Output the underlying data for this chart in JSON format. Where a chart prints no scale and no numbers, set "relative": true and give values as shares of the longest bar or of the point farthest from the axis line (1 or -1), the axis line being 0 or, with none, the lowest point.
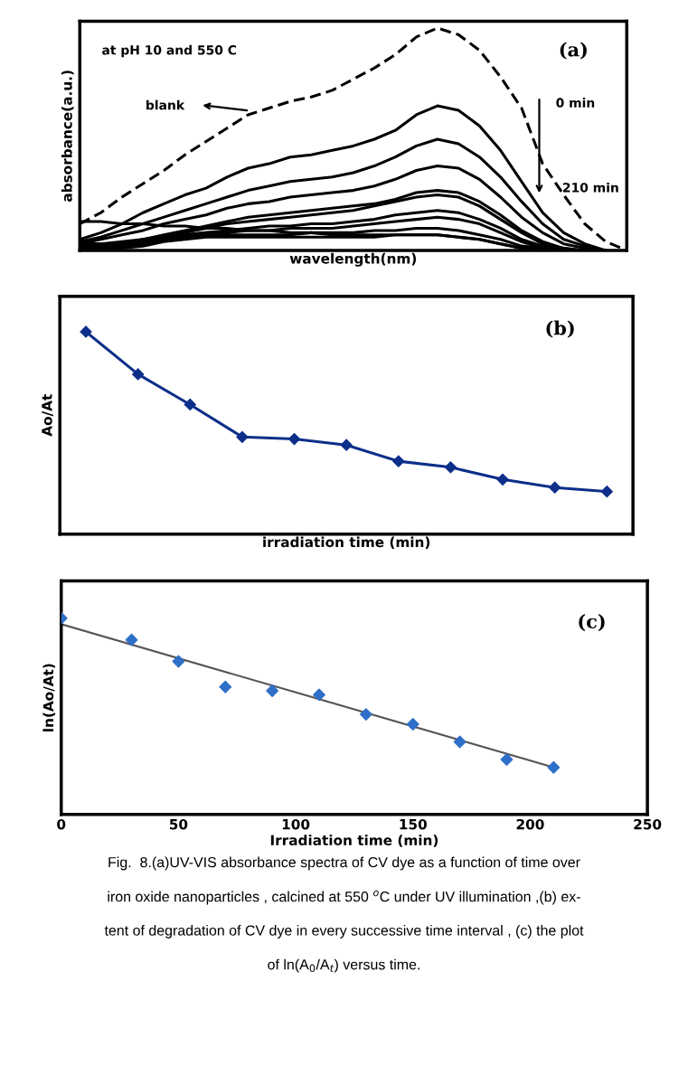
{
  "chart_data": [
    {
      "type": "line",
      "xlabel": "wavelength(nm)",
      "ylabel": "absorbance(a.u.)",
      "relative": true,
      "tick_labels": false,
      "grid": false,
      "categories": [
        null,
        null,
        null,
        null,
        null,
        null,
        null,
        null,
        null,
        null,
        null,
        null,
        null,
        null,
        null,
        null,
        null,
        null,
        null,
        null,
        null,
        null,
        null,
        null,
        null,
        null,
        null
      ],
      "annotations": [
        "at pH 10 and 550 C",
        "(a)",
        "blank",
        "0 min",
        "210 min"
      ],
      "series": [
        {
          "color": "#000000",
          "line_style": "dashed",
          "values": [
            0.12,
            0.17,
            0.24,
            0.3,
            0.36,
            0.43,
            0.49,
            0.55,
            0.61,
            0.64,
            0.67,
            0.69,
            0.72,
            0.77,
            0.82,
            0.88,
            0.96,
            1.0,
            0.97,
            0.9,
            0.78,
            0.64,
            0.39,
            0.25,
            0.12,
            0.04,
            0
          ]
        },
        {
          "color": "#000000",
          "values": [
            0.05,
            0.08,
            0.12,
            0.17,
            0.21,
            0.25,
            0.28,
            0.33,
            0.37,
            0.39,
            0.42,
            0.43,
            0.45,
            0.47,
            0.5,
            0.54,
            0.61,
            0.65,
            0.63,
            0.56,
            0.45,
            0.31,
            0.17,
            0.08,
            0.03,
            0,
            null
          ]
        },
        {
          "color": "#000000",
          "values": [
            0.04,
            0.06,
            0.09,
            0.12,
            0.15,
            0.18,
            0.21,
            0.24,
            0.27,
            0.29,
            0.31,
            0.32,
            0.33,
            0.35,
            0.38,
            0.42,
            0.47,
            0.5,
            0.48,
            0.42,
            0.33,
            0.22,
            0.12,
            0.05,
            0.02,
            0,
            null
          ]
        },
        {
          "color": "#000000",
          "values": [
            0.03,
            0.05,
            0.07,
            0.09,
            0.12,
            0.14,
            0.16,
            0.19,
            0.21,
            0.22,
            0.24,
            0.25,
            0.26,
            0.27,
            0.29,
            0.32,
            0.36,
            0.38,
            0.37,
            0.32,
            0.24,
            0.15,
            0.08,
            0.03,
            0.01,
            0,
            null
          ]
        },
        {
          "color": "#000000",
          "values": [
            0.025,
            0.03,
            0.03,
            0.05,
            0.07,
            0.09,
            0.11,
            0.13,
            0.15,
            0.16,
            0.17,
            0.18,
            0.19,
            0.2,
            0.21,
            0.23,
            0.26,
            0.27,
            0.26,
            0.22,
            0.16,
            0.09,
            0.04,
            0.01,
            0,
            null,
            null
          ]
        },
        {
          "color": "#000000",
          "values": [
            0.015,
            0.02,
            0.03,
            0.04,
            0.06,
            0.08,
            0.1,
            0.12,
            0.13,
            0.14,
            0.15,
            0.16,
            0.17,
            0.18,
            0.2,
            0.22,
            0.24,
            0.25,
            0.24,
            0.2,
            0.14,
            0.08,
            0.03,
            0.01,
            0,
            null,
            null
          ]
        },
        {
          "color": "#000000",
          "values": [
            0,
            0.01,
            0.02,
            0.03,
            0.05,
            0.07,
            0.08,
            0.09,
            0.1,
            0.11,
            0.11,
            0.12,
            0.12,
            0.13,
            0.14,
            0.16,
            0.17,
            0.18,
            0.17,
            0.14,
            0.1,
            0.05,
            0.02,
            0,
            null,
            null,
            null
          ]
        },
        {
          "color": "#000000",
          "values": [
            0.02,
            0.03,
            0.04,
            0.05,
            0.06,
            0.07,
            0.08,
            0.08,
            0.09,
            0.09,
            0.1,
            0.1,
            0.1,
            0.11,
            0.12,
            0.13,
            0.14,
            0.15,
            0.14,
            0.12,
            0.08,
            0.04,
            0.01,
            0,
            null,
            null,
            null
          ]
        },
        {
          "color": "#000000",
          "values": [
            0.035,
            0.03,
            0.03,
            0.04,
            0.05,
            0.06,
            0.07,
            0.07,
            0.07,
            0.07,
            0.07,
            0.08,
            0.08,
            0.08,
            0.09,
            0.09,
            0.1,
            0.1,
            0.09,
            0.07,
            0.05,
            0.02,
            0.01,
            0,
            null,
            null,
            null
          ]
        },
        {
          "color": "#000000",
          "values": [
            0.13,
            0.13,
            0.12,
            0.12,
            0.11,
            0.11,
            0.1,
            0.1,
            0.09,
            0.09,
            0.08,
            0.08,
            0.07,
            0.07,
            0.07,
            0.07,
            0.07,
            0.07,
            0.06,
            0.05,
            0.03,
            0.01,
            0,
            null,
            null,
            null,
            null
          ]
        },
        {
          "color": "#000000",
          "values": [
            0.01,
            0.01,
            0.01,
            0.02,
            0.04,
            0.05,
            0.06,
            0.06,
            0.06,
            0.06,
            0.06,
            0.06,
            0.06,
            0.06,
            0.06,
            0.07,
            0.07,
            0.07,
            0.06,
            0.05,
            0.03,
            0.01,
            0,
            null,
            null,
            null,
            null
          ]
        }
      ]
    },
    {
      "type": "line",
      "xlabel": "irradiation time (min)",
      "ylabel": "Ao/At",
      "relative": true,
      "tick_labels": false,
      "grid": false,
      "marker": "diamond",
      "categories": [
        null,
        null,
        null,
        null,
        null,
        null,
        null,
        null,
        null,
        null,
        null
      ],
      "annotations": [
        "(b)"
      ],
      "series": [
        {
          "color": "#0d2f8a",
          "values": [
            1,
            0.79,
            0.64,
            0.48,
            0.47,
            0.44,
            0.36,
            0.33,
            0.27,
            0.23,
            0.21
          ]
        }
      ]
    },
    {
      "type": "scatter",
      "xlabel": "Irradiation time (min)",
      "ylabel": "ln(Ao/At)",
      "relative": true,
      "tick_labels": "x",
      "grid": false,
      "xlim": [
        0,
        250
      ],
      "xticks": [
        0,
        50,
        100,
        150,
        200,
        250
      ],
      "annotations": [
        "(c)",
        "Fig.  8.(a)UV-VIS absorbance spectra of CV dye as a function of time over",
        "iron oxide nanoparticles , calcined at 550 $^{o}$C under UV illumination ,(b) ex-",
        "tent of degradation of CV dye in every successive time interval , (c) the plot",
        "of ln(A$_{0}$/A$_{t}$) versus time."
      ],
      "series": [
        {
          "type": "scatter",
          "marker": "diamond",
          "color": "#2f6fc8",
          "x": [
            0,
            30,
            50,
            70,
            90,
            110,
            130,
            150,
            170,
            190,
            210
          ],
          "values": [
            1,
            0.89,
            0.78,
            0.65,
            0.63,
            0.61,
            0.51,
            0.46,
            0.37,
            0.28,
            0.24
          ]
        },
        {
          "type": "line",
          "marker": "none",
          "color": "#555555",
          "x": [
            0,
            210
          ],
          "values": [
            0.97,
            0.24
          ]
        }
      ]
    }
  ]
}
